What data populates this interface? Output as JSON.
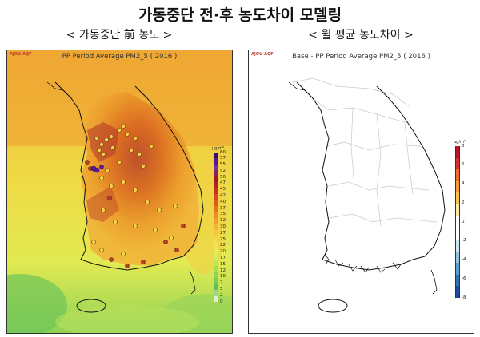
{
  "title": "가동중단 전·후 농도차이 모델링",
  "left_panel": {
    "subtitle": "< 가동중단 前 농도 >",
    "plot_title": "PP Period Average PM2_5 ( 2016 )",
    "logo": "AJOU-AQF",
    "unit": "µg/m³",
    "colorbar_ticks": [
      "60",
      "57",
      "55",
      "52",
      "50",
      "47",
      "45",
      "42",
      "40",
      "37",
      "35",
      "32",
      "30",
      "27",
      "25",
      "22",
      "20",
      "17",
      "15",
      "12",
      "10",
      "7",
      "5",
      "2",
      "0"
    ],
    "colorbar_colors": [
      "#3b0a75",
      "#5a1590",
      "#7a2aa8",
      "#8b1e5e",
      "#9b1b2a",
      "#b12424",
      "#c43322",
      "#d6451d",
      "#e05a1c",
      "#e87020",
      "#ef8a26",
      "#f39f2e",
      "#f6b436",
      "#f6c63f",
      "#f3d84a",
      "#eee454",
      "#e4ec58",
      "#d2ef5e",
      "#bde85c",
      "#a4df58",
      "#8ed456",
      "#78c955",
      "#61bd57",
      "#9ad68e",
      "#d9f1d2"
    ]
  },
  "right_panel": {
    "subtitle": "< 월 평균 농도차이 >",
    "plot_title": "Base - PP Period Average PM2_5 ( 2016 )",
    "logo": "AJOU-AQF",
    "unit": "µg/m³",
    "colorbar_ticks": [
      "8",
      "6",
      "4",
      "2",
      "0",
      "-2",
      "-4",
      "-6",
      "-8"
    ],
    "colorbar_colors": [
      "#b2182b",
      "#d6302b",
      "#ef6a2f",
      "#f59a36",
      "#f9c34b",
      "#fde9a3",
      "#ffffff",
      "#ffffff",
      "#cfe6f2",
      "#93c4df",
      "#5a9dcb",
      "#3471b0",
      "#1f4b99"
    ]
  }
}
